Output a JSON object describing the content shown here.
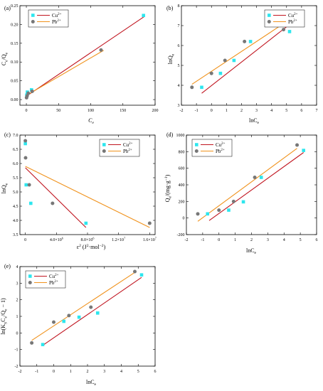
{
  "chart_data": [
    {
      "type": "scatter",
      "panel_label": "(a)",
      "xlabel_main": "C",
      "xlabel_sub": "e",
      "ylabel_parts": [
        {
          "t": "C"
        },
        {
          "t": "e",
          "sub": true
        },
        {
          "t": "/Q"
        },
        {
          "t": "e",
          "sub": true
        }
      ],
      "xlim": [
        -10,
        200
      ],
      "ylim": [
        -0.015,
        0.25
      ],
      "xticks": [
        0,
        50,
        100,
        150,
        200
      ],
      "xtick_labels": [
        "0",
        "50",
        "100",
        "150",
        "200"
      ],
      "yticks": [
        0,
        0.05,
        0.1,
        0.15,
        0.2,
        0.25
      ],
      "ytick_labels": [
        "0.00",
        "0.05",
        "0.10",
        "0.15",
        "0.20",
        "0.25"
      ],
      "legend": {
        "position": "top-left",
        "entries": [
          {
            "base": "Cu",
            "sup": "2+",
            "series": 0
          },
          {
            "base": "Pb",
            "sup": "2+",
            "series": 1
          }
        ]
      },
      "series": [
        {
          "name": "Cu2+",
          "marker": "square",
          "color": "#2ee6ee",
          "fit_color": "#c0141f",
          "points": [
            [
              0.6,
              0.012
            ],
            [
              1.5,
              0.02
            ],
            [
              8,
              0.026
            ],
            [
              182,
              0.224
            ]
          ],
          "fit": [
            [
              0,
              0.009
            ],
            [
              184,
              0.222
            ]
          ]
        },
        {
          "name": "Pb2+",
          "marker": "circle",
          "color": "#777777",
          "fit_color": "#f0921c",
          "points": [
            [
              0.3,
              0.005
            ],
            [
              1.2,
              0.01
            ],
            [
              3,
              0.017
            ],
            [
              9,
              0.022
            ],
            [
              116,
              0.132
            ]
          ],
          "fit": [
            [
              0,
              0.011
            ],
            [
              120,
              0.131
            ]
          ]
        }
      ]
    },
    {
      "type": "scatter",
      "panel_label": "(b)",
      "xlabel_main": "lnC",
      "xlabel_sub": "e",
      "ylabel_parts": [
        {
          "t": "lnQ"
        },
        {
          "t": "e",
          "sub": true
        }
      ],
      "xlim": [
        -2,
        7
      ],
      "ylim": [
        3,
        8
      ],
      "xticks": [
        -2,
        -1,
        0,
        1,
        2,
        3,
        4,
        5,
        6,
        7
      ],
      "xtick_labels": [
        "-2",
        "-1",
        "0",
        "1",
        "2",
        "3",
        "4",
        "5",
        "6",
        "7"
      ],
      "yticks": [
        3,
        4,
        5,
        6,
        7,
        8
      ],
      "ytick_labels": [
        "3",
        "4",
        "5",
        "6",
        "7",
        "8"
      ],
      "legend": {
        "position": "top-right",
        "entries": [
          {
            "base": "Cu",
            "sup": "2+",
            "series": 0
          },
          {
            "base": "Pb",
            "sup": "2+",
            "series": 1
          }
        ]
      },
      "series": [
        {
          "name": "Cu2+",
          "marker": "square",
          "color": "#2ee6ee",
          "fit_color": "#c0141f",
          "points": [
            [
              -0.65,
              3.9
            ],
            [
              0.6,
              4.6
            ],
            [
              1.5,
              5.25
            ],
            [
              2.6,
              6.2
            ],
            [
              5.2,
              6.7
            ]
          ],
          "fit": [
            [
              -0.65,
              3.6
            ],
            [
              5.1,
              7.0
            ]
          ]
        },
        {
          "name": "Pb2+",
          "marker": "circle",
          "color": "#777777",
          "fit_color": "#f0921c",
          "points": [
            [
              -1.3,
              3.9
            ],
            [
              0.0,
              4.6
            ],
            [
              0.9,
              5.25
            ],
            [
              2.2,
              6.2
            ],
            [
              4.8,
              6.8
            ]
          ],
          "fit": [
            [
              -1.3,
              4.05
            ],
            [
              4.7,
              7.05
            ]
          ]
        }
      ]
    },
    {
      "type": "scatter",
      "panel_label": "(c)",
      "xlabel_parts": [
        {
          "t": "ε"
        },
        {
          "t": "2",
          "sup": true
        },
        {
          "t": " (J"
        },
        {
          "t": "2",
          "sup": true
        },
        {
          "t": "·mol"
        },
        {
          "t": "−2",
          "sup": true
        },
        {
          "t": ")"
        }
      ],
      "ylabel_parts": [
        {
          "t": "lnQ"
        },
        {
          "t": "e",
          "sub": true
        }
      ],
      "xlim": [
        -700000,
        16700000
      ],
      "ylim": [
        3.5,
        7.0
      ],
      "xticks": [
        0,
        4000000,
        8000000,
        12000000,
        16000000
      ],
      "xtick_labels": [
        [
          {
            "t": "0"
          }
        ],
        [
          {
            "t": "4.0×10"
          },
          {
            "t": "6",
            "sup": true
          }
        ],
        [
          {
            "t": "8.0×10"
          },
          {
            "t": "6",
            "sup": true
          }
        ],
        [
          {
            "t": "1.2×10"
          },
          {
            "t": "7",
            "sup": true
          }
        ],
        [
          {
            "t": "1.6×10"
          },
          {
            "t": "7",
            "sup": true
          }
        ]
      ],
      "yticks": [
        3.5,
        4.0,
        4.5,
        5.0,
        5.5,
        6.0,
        6.5,
        7.0
      ],
      "ytick_labels": [
        "3.5",
        "4.0",
        "4.5",
        "5.0",
        "5.5",
        "6.0",
        "6.5",
        "7.0"
      ],
      "legend": {
        "position": "top-right",
        "entries": [
          {
            "base": "Cu",
            "sup": "2+",
            "series": 0
          },
          {
            "base": "Pb",
            "sup": "2+",
            "series": 1
          }
        ]
      },
      "series": [
        {
          "name": "Cu2+",
          "marker": "square",
          "color": "#2ee6ee",
          "fit_color": "#c0141f",
          "points": [
            [
              0,
              6.7
            ],
            [
              100000,
              5.25
            ],
            [
              700000,
              4.6
            ],
            [
              7800000,
              3.9
            ]
          ],
          "fit": [
            [
              0,
              5.85
            ],
            [
              7800000,
              3.75
            ]
          ]
        },
        {
          "name": "Pb2+",
          "marker": "circle",
          "color": "#777777",
          "fit_color": "#f0921c",
          "points": [
            [
              0,
              6.8
            ],
            [
              30000,
              6.2
            ],
            [
              500000,
              5.25
            ],
            [
              3500000,
              4.6
            ],
            [
              16000000,
              3.9
            ]
          ],
          "fit": [
            [
              0,
              5.9
            ],
            [
              16000000,
              3.75
            ]
          ]
        }
      ]
    },
    {
      "type": "scatter",
      "panel_label": "(d)",
      "xlabel_main": "lnC",
      "xlabel_sub": "e",
      "ylabel_parts": [
        {
          "t": "Q"
        },
        {
          "t": "e",
          "sub": true
        },
        {
          "t": "/(mg·g"
        },
        {
          "t": "−1",
          "sup": true
        },
        {
          "t": ")"
        }
      ],
      "xlim": [
        -2,
        6
      ],
      "ylim": [
        -200,
        1000
      ],
      "xticks": [
        -2,
        -1,
        0,
        1,
        2,
        3,
        4,
        5,
        6
      ],
      "xtick_labels": [
        "-2",
        "-1",
        "0",
        "1",
        "2",
        "3",
        "4",
        "5",
        "6"
      ],
      "yticks": [
        -200,
        0,
        200,
        400,
        600,
        800,
        1000
      ],
      "ytick_labels": [
        "-200",
        "0",
        "200",
        "400",
        "600",
        "800",
        "1000"
      ],
      "legend": {
        "position": "top-left",
        "entries": [
          {
            "base": "Cu",
            "sup": "2+",
            "series": 0
          },
          {
            "base": "Pb",
            "sup": "2+",
            "series": 1
          }
        ]
      },
      "series": [
        {
          "name": "Cu2+",
          "marker": "square",
          "color": "#2ee6ee",
          "fit_color": "#c0141f",
          "points": [
            [
              -0.7,
              50
            ],
            [
              0.6,
              95
            ],
            [
              1.5,
              195
            ],
            [
              2.6,
              490
            ],
            [
              5.2,
              815
            ]
          ],
          "fit": [
            [
              -0.6,
              -30
            ],
            [
              5.2,
              790
            ]
          ]
        },
        {
          "name": "Pb2+",
          "marker": "circle",
          "color": "#777777",
          "fit_color": "#f0921c",
          "points": [
            [
              -1.3,
              50
            ],
            [
              0.0,
              95
            ],
            [
              0.9,
              200
            ],
            [
              2.2,
              490
            ],
            [
              4.8,
              880
            ]
          ],
          "fit": [
            [
              -1.3,
              -40
            ],
            [
              4.8,
              840
            ]
          ]
        }
      ]
    },
    {
      "type": "scatter",
      "panel_label": "(e)",
      "xlabel_main": "lnC",
      "xlabel_sub": "e",
      "ylabel_parts": [
        {
          "t": "ln(K"
        },
        {
          "t": "S",
          "sub": true
        },
        {
          "t": "C"
        },
        {
          "t": "e",
          "sub": true
        },
        {
          "t": "/Q"
        },
        {
          "t": "e",
          "sub": true
        },
        {
          "t": " − 1)"
        }
      ],
      "xlim": [
        -2,
        6
      ],
      "ylim": [
        -2,
        4
      ],
      "xticks": [
        -2,
        -1,
        0,
        1,
        2,
        3,
        4,
        5,
        6
      ],
      "xtick_labels": [
        "-2",
        "-1",
        "0",
        "1",
        "2",
        "3",
        "4",
        "5",
        "6"
      ],
      "yticks": [
        -2,
        -1,
        0,
        1,
        2,
        3,
        4
      ],
      "ytick_labels": [
        "-2",
        "-1",
        "0",
        "1",
        "2",
        "3",
        "4"
      ],
      "legend": {
        "position": "top-left",
        "entries": [
          {
            "base": "Cu",
            "sup": "2+",
            "series": 0
          },
          {
            "base": "Pb",
            "sup": "2+",
            "series": 1
          }
        ]
      },
      "series": [
        {
          "name": "Cu2+",
          "marker": "square",
          "color": "#2ee6ee",
          "fit_color": "#c0141f",
          "points": [
            [
              -0.65,
              -0.7
            ],
            [
              0.6,
              0.7
            ],
            [
              1.5,
              0.95
            ],
            [
              2.6,
              1.2
            ],
            [
              5.2,
              3.5
            ]
          ],
          "fit": [
            [
              -0.65,
              -0.75
            ],
            [
              5.2,
              3.35
            ]
          ]
        },
        {
          "name": "Pb2+",
          "marker": "circle",
          "color": "#777777",
          "fit_color": "#f0921c",
          "points": [
            [
              -1.3,
              -0.6
            ],
            [
              0.0,
              0.65
            ],
            [
              0.9,
              1.05
            ],
            [
              2.2,
              1.55
            ],
            [
              4.8,
              3.7
            ]
          ],
          "fit": [
            [
              -1.3,
              -0.45
            ],
            [
              4.8,
              3.65
            ]
          ]
        }
      ]
    }
  ]
}
